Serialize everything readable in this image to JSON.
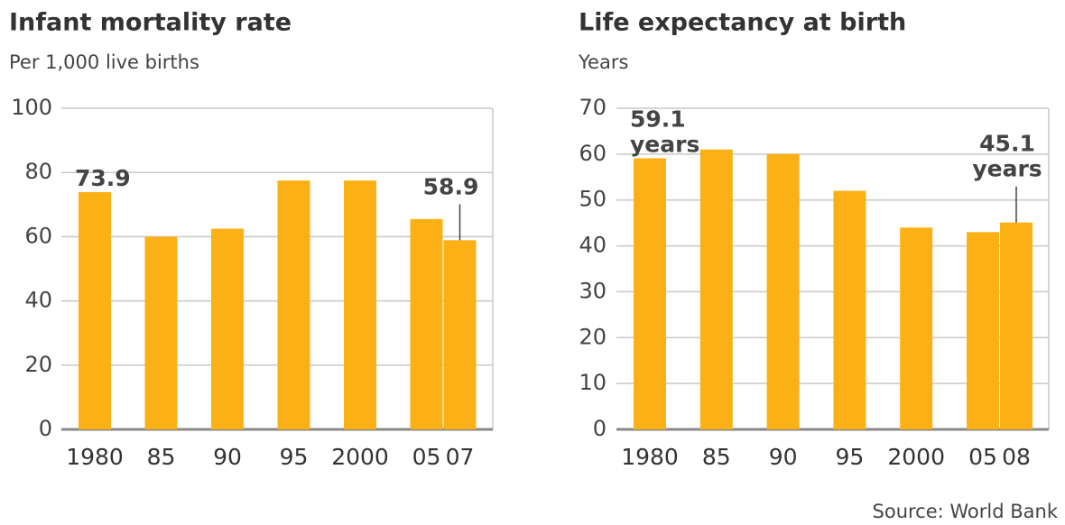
{
  "chart_data": [
    {
      "type": "bar",
      "title": "Infant mortality rate",
      "subtitle": "Per 1,000 live births",
      "categories": [
        "1980",
        "85",
        "90",
        "95",
        "2000",
        "05",
        "07"
      ],
      "values": [
        73.9,
        60,
        62.5,
        77.5,
        77.5,
        65.5,
        58.9
      ],
      "value_labels": [
        "73.9",
        null,
        null,
        null,
        null,
        null,
        "58.9"
      ],
      "color": "#fbb116",
      "ylim": [
        0,
        100
      ],
      "yticks": [
        0,
        20,
        40,
        60,
        80,
        100
      ],
      "grid": true
    },
    {
      "type": "bar",
      "title": "Life expectancy at birth",
      "subtitle": "Years",
      "categories": [
        "1980",
        "85",
        "90",
        "95",
        "2000",
        "05",
        "08"
      ],
      "values": [
        59.1,
        61,
        60,
        52,
        44,
        43,
        45.1
      ],
      "value_labels": [
        "59.1 years",
        null,
        null,
        null,
        null,
        null,
        "45.1 years"
      ],
      "color": "#fbb116",
      "ylim": [
        0,
        70
      ],
      "yticks": [
        0,
        10,
        20,
        30,
        40,
        50,
        60,
        70
      ],
      "grid": true
    }
  ],
  "source": "Source: World Bank"
}
